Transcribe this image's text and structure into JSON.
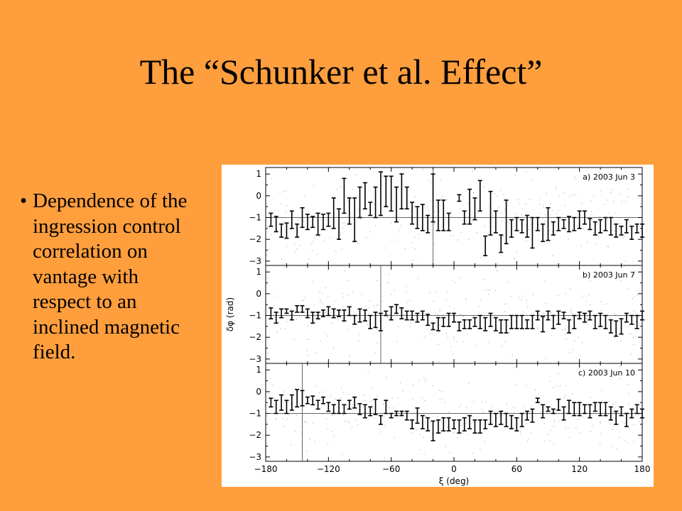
{
  "slide": {
    "title": "The “Schunker et al. Effect”",
    "bullet_symbol": "•",
    "bullet_text": "Dependence of the ingression control correlation on vantage with respect to an inclined magnetic field."
  },
  "chart_data": {
    "type": "scatter",
    "xlabel": "ξ (deg)",
    "ylabel": "δφ (rad)",
    "xlim": [
      -180,
      180
    ],
    "x_ticks": [
      -180,
      -120,
      -60,
      0,
      60,
      120,
      180
    ],
    "y_ticks": [
      1,
      0,
      -1,
      -2,
      -3
    ],
    "ylim": [
      -3.2,
      1.3
    ],
    "panels": [
      {
        "label": "a) 2003 Jun 3",
        "reference_y": -1.0,
        "vertical_line_x": -20,
        "points": [
          [
            -175,
            -1.1,
            0.3
          ],
          [
            -170,
            -1.3,
            0.35
          ],
          [
            -165,
            -1.6,
            0.3
          ],
          [
            -160,
            -1.6,
            0.35
          ],
          [
            -155,
            -1.1,
            0.4
          ],
          [
            -150,
            -1.6,
            0.3
          ],
          [
            -145,
            -1.0,
            0.45
          ],
          [
            -140,
            -1.2,
            0.35
          ],
          [
            -135,
            -1.2,
            0.25
          ],
          [
            -130,
            -1.3,
            0.5
          ],
          [
            -125,
            -1.2,
            0.35
          ],
          [
            -120,
            -1.1,
            0.3
          ],
          [
            -115,
            -0.8,
            0.7
          ],
          [
            -110,
            -1.3,
            0.7
          ],
          [
            -105,
            0.0,
            0.8
          ],
          [
            -100,
            -0.7,
            0.6
          ],
          [
            -95,
            -1.1,
            1.0
          ],
          [
            -90,
            -0.3,
            0.7
          ],
          [
            -85,
            0.0,
            0.6
          ],
          [
            -80,
            -0.6,
            0.3
          ],
          [
            -75,
            -0.3,
            0.7
          ],
          [
            -70,
            0.1,
            1.0
          ],
          [
            -65,
            0.2,
            0.7
          ],
          [
            -60,
            0.1,
            0.8
          ],
          [
            -55,
            -0.4,
            0.8
          ],
          [
            -50,
            0.2,
            0.8
          ],
          [
            -45,
            -0.1,
            0.5
          ],
          [
            -40,
            -0.8,
            0.5
          ],
          [
            -35,
            -1.0,
            0.5
          ],
          [
            -30,
            -1.0,
            0.6
          ],
          [
            -25,
            -1.3,
            0.4
          ],
          [
            -20,
            -0.1,
            1.1
          ],
          [
            -15,
            -0.9,
            0.7
          ],
          [
            -10,
            -0.9,
            0.7
          ],
          [
            -5,
            -1.2,
            0.4
          ],
          [
            5,
            -0.1,
            0.15
          ],
          [
            10,
            -1.0,
            0.3
          ],
          [
            15,
            -0.5,
            0.8
          ],
          [
            20,
            -0.6,
            0.5
          ],
          [
            25,
            0.0,
            0.7
          ],
          [
            30,
            -2.3,
            0.45
          ],
          [
            35,
            -0.8,
            1.0
          ],
          [
            40,
            -1.2,
            0.5
          ],
          [
            45,
            -2.2,
            0.4
          ],
          [
            50,
            -1.2,
            1.0
          ],
          [
            55,
            -1.5,
            0.4
          ],
          [
            60,
            -1.3,
            0.3
          ],
          [
            65,
            -1.4,
            0.3
          ],
          [
            70,
            -1.4,
            0.5
          ],
          [
            75,
            -1.7,
            0.7
          ],
          [
            80,
            -1.3,
            0.3
          ],
          [
            85,
            -1.7,
            0.4
          ],
          [
            90,
            -1.3,
            0.75
          ],
          [
            95,
            -1.5,
            0.3
          ],
          [
            100,
            -1.3,
            0.3
          ],
          [
            105,
            -1.3,
            0.2
          ],
          [
            110,
            -1.3,
            0.35
          ],
          [
            115,
            -1.3,
            0.3
          ],
          [
            120,
            -1.1,
            0.4
          ],
          [
            125,
            -1.0,
            0.3
          ],
          [
            130,
            -1.3,
            0.25
          ],
          [
            135,
            -1.5,
            0.3
          ],
          [
            140,
            -1.4,
            0.3
          ],
          [
            145,
            -1.3,
            0.3
          ],
          [
            150,
            -1.4,
            0.4
          ],
          [
            155,
            -1.6,
            0.3
          ],
          [
            160,
            -1.6,
            0.2
          ],
          [
            165,
            -1.4,
            0.3
          ],
          [
            170,
            -1.7,
            0.3
          ],
          [
            175,
            -1.5,
            0.2
          ],
          [
            180,
            -1.6,
            0.3
          ]
        ]
      },
      {
        "label": "b) 2003 Jun 7",
        "reference_y": -1.0,
        "vertical_line_x": -70,
        "points": [
          [
            -175,
            -0.9,
            0.25
          ],
          [
            -170,
            -1.1,
            0.25
          ],
          [
            -165,
            -0.9,
            0.2
          ],
          [
            -160,
            -0.8,
            0.1
          ],
          [
            -155,
            -1.0,
            0.2
          ],
          [
            -150,
            -0.7,
            0.15
          ],
          [
            -145,
            -0.7,
            0.15
          ],
          [
            -140,
            -0.9,
            0.2
          ],
          [
            -135,
            -1.1,
            0.25
          ],
          [
            -130,
            -1.0,
            0.15
          ],
          [
            -125,
            -0.9,
            0.15
          ],
          [
            -120,
            -0.8,
            0.2
          ],
          [
            -115,
            -0.9,
            0.2
          ],
          [
            -110,
            -0.9,
            0.15
          ],
          [
            -105,
            -1.0,
            0.25
          ],
          [
            -100,
            -0.8,
            0.2
          ],
          [
            -95,
            -1.2,
            0.2
          ],
          [
            -90,
            -1.0,
            0.3
          ],
          [
            -85,
            -1.0,
            0.25
          ],
          [
            -80,
            -1.3,
            0.3
          ],
          [
            -75,
            -1.2,
            0.35
          ],
          [
            -70,
            -1.3,
            0.4
          ],
          [
            -65,
            -0.9,
            0.1
          ],
          [
            -60,
            -0.9,
            0.3
          ],
          [
            -55,
            -0.7,
            0.2
          ],
          [
            -50,
            -0.9,
            0.25
          ],
          [
            -45,
            -1.0,
            0.2
          ],
          [
            -40,
            -1.0,
            0.2
          ],
          [
            -35,
            -1.1,
            0.2
          ],
          [
            -30,
            -1.0,
            0.2
          ],
          [
            -25,
            -1.2,
            0.25
          ],
          [
            -20,
            -1.5,
            0.15
          ],
          [
            -15,
            -1.4,
            0.3
          ],
          [
            -10,
            -1.3,
            0.2
          ],
          [
            -5,
            -1.2,
            0.3
          ],
          [
            0,
            -1.1,
            0.2
          ],
          [
            5,
            -1.5,
            0.2
          ],
          [
            10,
            -1.4,
            0.2
          ],
          [
            15,
            -1.4,
            0.2
          ],
          [
            20,
            -1.3,
            0.2
          ],
          [
            25,
            -1.3,
            0.3
          ],
          [
            30,
            -1.4,
            0.3
          ],
          [
            35,
            -1.2,
            0.3
          ],
          [
            40,
            -1.4,
            0.3
          ],
          [
            45,
            -1.5,
            0.3
          ],
          [
            50,
            -1.5,
            0.3
          ],
          [
            55,
            -1.3,
            0.3
          ],
          [
            60,
            -1.3,
            0.3
          ],
          [
            65,
            -1.3,
            0.3
          ],
          [
            70,
            -1.4,
            0.2
          ],
          [
            75,
            -1.3,
            0.3
          ],
          [
            80,
            -1.0,
            0.2
          ],
          [
            85,
            -1.4,
            0.35
          ],
          [
            90,
            -1.0,
            0.2
          ],
          [
            95,
            -1.3,
            0.3
          ],
          [
            100,
            -1.1,
            0.3
          ],
          [
            105,
            -1.0,
            0.15
          ],
          [
            110,
            -1.5,
            0.3
          ],
          [
            115,
            -1.3,
            0.3
          ],
          [
            120,
            -1.0,
            0.15
          ],
          [
            125,
            -1.1,
            0.2
          ],
          [
            130,
            -1.0,
            0.2
          ],
          [
            135,
            -1.3,
            0.3
          ],
          [
            140,
            -1.2,
            0.3
          ],
          [
            145,
            -1.3,
            0.3
          ],
          [
            150,
            -1.5,
            0.3
          ],
          [
            155,
            -1.6,
            0.35
          ],
          [
            160,
            -1.5,
            0.35
          ],
          [
            165,
            -1.1,
            0.2
          ],
          [
            170,
            -1.2,
            0.2
          ],
          [
            175,
            -1.3,
            0.3
          ],
          [
            180,
            -1.0,
            0.2
          ]
        ]
      },
      {
        "label": "c) 2003 Jun 10",
        "reference_y": -1.0,
        "vertical_line_x": -145,
        "points": [
          [
            -175,
            -0.5,
            0.2
          ],
          [
            -170,
            -0.7,
            0.3
          ],
          [
            -165,
            -0.5,
            0.35
          ],
          [
            -160,
            -0.7,
            0.3
          ],
          [
            -155,
            -0.5,
            0.35
          ],
          [
            -150,
            -0.3,
            0.4
          ],
          [
            -145,
            -0.3,
            0.35
          ],
          [
            -140,
            -0.4,
            0.15
          ],
          [
            -135,
            -0.4,
            0.2
          ],
          [
            -130,
            -0.6,
            0.2
          ],
          [
            -125,
            -0.4,
            0.15
          ],
          [
            -120,
            -0.7,
            0.2
          ],
          [
            -115,
            -0.8,
            0.2
          ],
          [
            -110,
            -0.7,
            0.3
          ],
          [
            -105,
            -0.8,
            0.2
          ],
          [
            -100,
            -0.6,
            0.2
          ],
          [
            -95,
            -0.5,
            0.25
          ],
          [
            -90,
            -0.8,
            0.25
          ],
          [
            -85,
            -0.9,
            0.3
          ],
          [
            -80,
            -0.9,
            0.2
          ],
          [
            -75,
            -0.7,
            0.35
          ],
          [
            -70,
            -1.3,
            0.2
          ],
          [
            -65,
            -0.7,
            0.3
          ],
          [
            -60,
            -1.1,
            0.1
          ],
          [
            -55,
            -1.0,
            0.1
          ],
          [
            -50,
            -1.0,
            0.1
          ],
          [
            -45,
            -1.1,
            0.2
          ],
          [
            -40,
            -1.5,
            0.2
          ],
          [
            -35,
            -1.1,
            0.35
          ],
          [
            -30,
            -1.4,
            0.3
          ],
          [
            -25,
            -1.5,
            0.3
          ],
          [
            -20,
            -1.8,
            0.45
          ],
          [
            -15,
            -1.6,
            0.3
          ],
          [
            -10,
            -1.5,
            0.3
          ],
          [
            -5,
            -1.5,
            0.3
          ],
          [
            0,
            -1.5,
            0.2
          ],
          [
            5,
            -1.6,
            0.3
          ],
          [
            10,
            -1.5,
            0.3
          ],
          [
            15,
            -1.4,
            0.3
          ],
          [
            20,
            -1.6,
            0.3
          ],
          [
            25,
            -1.6,
            0.3
          ],
          [
            30,
            -1.5,
            0.2
          ],
          [
            35,
            -1.2,
            0.3
          ],
          [
            40,
            -1.3,
            0.3
          ],
          [
            45,
            -1.2,
            0.3
          ],
          [
            50,
            -1.3,
            0.3
          ],
          [
            55,
            -1.4,
            0.3
          ],
          [
            60,
            -1.5,
            0.3
          ],
          [
            65,
            -1.3,
            0.3
          ],
          [
            70,
            -1.1,
            0.2
          ],
          [
            75,
            -1.1,
            0.3
          ],
          [
            80,
            -0.4,
            0.1
          ],
          [
            85,
            -0.9,
            0.3
          ],
          [
            90,
            -0.8,
            0.1
          ],
          [
            95,
            -0.9,
            0.1
          ],
          [
            100,
            -0.6,
            0.25
          ],
          [
            105,
            -1.0,
            0.3
          ],
          [
            110,
            -0.7,
            0.3
          ],
          [
            115,
            -0.8,
            0.3
          ],
          [
            120,
            -0.8,
            0.3
          ],
          [
            125,
            -0.8,
            0.2
          ],
          [
            130,
            -0.9,
            0.3
          ],
          [
            135,
            -0.7,
            0.2
          ],
          [
            140,
            -0.8,
            0.3
          ],
          [
            145,
            -0.8,
            0.3
          ],
          [
            150,
            -1.0,
            0.3
          ],
          [
            155,
            -1.2,
            0.3
          ],
          [
            160,
            -0.9,
            0.2
          ],
          [
            165,
            -1.3,
            0.3
          ],
          [
            170,
            -1.0,
            0.2
          ],
          [
            175,
            -0.8,
            0.2
          ],
          [
            180,
            -1.0,
            0.2
          ]
        ]
      }
    ]
  }
}
